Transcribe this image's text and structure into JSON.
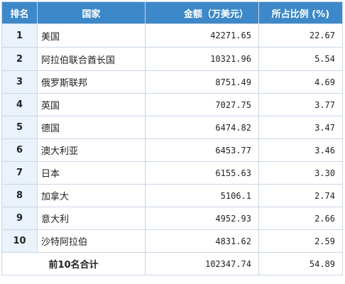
{
  "table": {
    "headers": {
      "rank": "排名",
      "country": "国家",
      "amount": "金额（万美元）",
      "share": "所占比例 (%)"
    },
    "rows": [
      {
        "rank": "1",
        "country": "美国",
        "amount": "42271.65",
        "share": "22.67"
      },
      {
        "rank": "2",
        "country": "阿拉伯联合酋长国",
        "amount": "10321.96",
        "share": "5.54"
      },
      {
        "rank": "3",
        "country": "俄罗斯联邦",
        "amount": "8751.49",
        "share": "4.69"
      },
      {
        "rank": "4",
        "country": "英国",
        "amount": "7027.75",
        "share": "3.77"
      },
      {
        "rank": "5",
        "country": "德国",
        "amount": "6474.82",
        "share": "3.47"
      },
      {
        "rank": "6",
        "country": "澳大利亚",
        "amount": "6453.77",
        "share": "3.46"
      },
      {
        "rank": "7",
        "country": "日本",
        "amount": "6155.63",
        "share": "3.30"
      },
      {
        "rank": "8",
        "country": "加拿大",
        "amount": "5106.1",
        "share": "2.74"
      },
      {
        "rank": "9",
        "country": "意大利",
        "amount": "4952.93",
        "share": "2.66"
      },
      {
        "rank": "10",
        "country": "沙特阿拉伯",
        "amount": "4831.62",
        "share": "2.59"
      }
    ],
    "total": {
      "label": "前10名合计",
      "amount": "102347.74",
      "share": "54.89"
    }
  }
}
